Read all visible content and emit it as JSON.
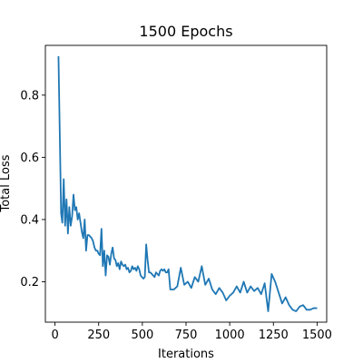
{
  "chart_data": {
    "type": "line",
    "title": "1500 Epochs",
    "xlabel": "Iterations",
    "ylabel": "Total Loss",
    "xlim": [
      -55,
      1555
    ],
    "ylim": [
      0.07,
      0.96
    ],
    "xticks": [
      0,
      250,
      500,
      750,
      1000,
      1250,
      1500
    ],
    "yticks": [
      0.2,
      0.4,
      0.6,
      0.8
    ],
    "ytick_labels": [
      "0.2",
      "0.4",
      "0.6",
      "0.8"
    ],
    "grid": false,
    "series": [
      {
        "color": "#1f77b4",
        "x": [
          20,
          35,
          42,
          50,
          58,
          66,
          74,
          82,
          90,
          98,
          106,
          114,
          122,
          130,
          138,
          146,
          154,
          162,
          170,
          178,
          186,
          194,
          202,
          210,
          218,
          226,
          234,
          242,
          250,
          258,
          266,
          274,
          282,
          290,
          298,
          306,
          314,
          322,
          330,
          338,
          346,
          354,
          362,
          370,
          378,
          386,
          394,
          402,
          410,
          418,
          426,
          434,
          442,
          450,
          458,
          466,
          474,
          482,
          490,
          498,
          506,
          514,
          522,
          530,
          538,
          546,
          554,
          562,
          570,
          578,
          586,
          594,
          602,
          610,
          618,
          626,
          634,
          642,
          650,
          660,
          680,
          700,
          720,
          740,
          760,
          780,
          800,
          820,
          840,
          860,
          880,
          900,
          920,
          940,
          960,
          980,
          1000,
          1020,
          1040,
          1060,
          1080,
          1100,
          1120,
          1140,
          1160,
          1180,
          1200,
          1220,
          1240,
          1260,
          1280,
          1300,
          1320,
          1340,
          1360,
          1380,
          1400,
          1420,
          1440,
          1460,
          1480,
          1500
        ],
        "y": [
          0.925,
          0.42,
          0.39,
          0.53,
          0.38,
          0.465,
          0.355,
          0.44,
          0.38,
          0.41,
          0.48,
          0.43,
          0.44,
          0.4,
          0.42,
          0.39,
          0.36,
          0.34,
          0.4,
          0.3,
          0.35,
          0.35,
          0.345,
          0.34,
          0.33,
          0.31,
          0.3,
          0.3,
          0.29,
          0.285,
          0.37,
          0.25,
          0.3,
          0.22,
          0.285,
          0.28,
          0.255,
          0.29,
          0.31,
          0.275,
          0.27,
          0.25,
          0.26,
          0.24,
          0.265,
          0.255,
          0.25,
          0.255,
          0.24,
          0.245,
          0.23,
          0.235,
          0.25,
          0.24,
          0.245,
          0.235,
          0.25,
          0.24,
          0.22,
          0.215,
          0.21,
          0.215,
          0.32,
          0.27,
          0.23,
          0.23,
          0.225,
          0.22,
          0.215,
          0.23,
          0.225,
          0.22,
          0.235,
          0.24,
          0.235,
          0.24,
          0.23,
          0.23,
          0.24,
          0.175,
          0.175,
          0.185,
          0.245,
          0.19,
          0.2,
          0.18,
          0.215,
          0.2,
          0.25,
          0.19,
          0.21,
          0.175,
          0.16,
          0.18,
          0.165,
          0.14,
          0.155,
          0.165,
          0.185,
          0.165,
          0.2,
          0.165,
          0.185,
          0.17,
          0.18,
          0.16,
          0.195,
          0.105,
          0.225,
          0.2,
          0.165,
          0.13,
          0.15,
          0.125,
          0.11,
          0.105,
          0.12,
          0.125,
          0.11,
          0.11,
          0.115,
          0.115
        ]
      }
    ]
  }
}
